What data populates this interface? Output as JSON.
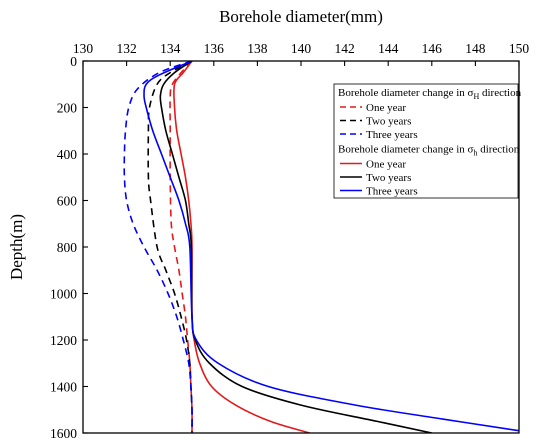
{
  "chart_data": {
    "type": "line",
    "xlabel": "Borehole diameter(mm)",
    "ylabel": "Depth(m)",
    "xlim": [
      130,
      150
    ],
    "ylim": [
      0,
      1600
    ],
    "x_axis_position": "top",
    "y_axis_inverted": true,
    "xticks": [
      "130",
      "132",
      "134",
      "136",
      "138",
      "140",
      "142",
      "144",
      "146",
      "148",
      "150"
    ],
    "yticks": [
      "0",
      "200",
      "400",
      "600",
      "800",
      "1000",
      "1200",
      "1400",
      "1600"
    ],
    "grid": false,
    "legend_placement": "top-right",
    "legend_groups": [
      {
        "prefix": "Borehole diameter change in ",
        "sigma": "σ",
        "subscript": "H",
        "suffix": " direction"
      },
      {
        "prefix": "Borehole diameter change in ",
        "sigma": "σ",
        "subscript": "h",
        "suffix": " direction"
      }
    ],
    "series": [
      {
        "name": "One year",
        "group": 0,
        "color": "#e31a1c",
        "dash": "dashed",
        "points": [
          [
            135.0,
            0
          ],
          [
            134.5,
            50
          ],
          [
            134.1,
            100
          ],
          [
            134.0,
            150
          ],
          [
            134.0,
            300
          ],
          [
            134.0,
            500
          ],
          [
            134.05,
            700
          ],
          [
            134.2,
            800
          ],
          [
            134.4,
            900
          ],
          [
            134.55,
            1000
          ],
          [
            134.7,
            1100
          ],
          [
            134.8,
            1200
          ],
          [
            134.9,
            1300
          ],
          [
            134.95,
            1400
          ],
          [
            135.0,
            1500
          ],
          [
            135.0,
            1600
          ]
        ]
      },
      {
        "name": "Two years",
        "group": 0,
        "color": "#000000",
        "dash": "dashed",
        "points": [
          [
            135.0,
            0
          ],
          [
            134.0,
            50
          ],
          [
            133.4,
            100
          ],
          [
            133.05,
            200
          ],
          [
            133.0,
            300
          ],
          [
            133.0,
            500
          ],
          [
            133.1,
            600
          ],
          [
            133.4,
            800
          ],
          [
            133.8,
            900
          ],
          [
            134.2,
            1000
          ],
          [
            134.5,
            1100
          ],
          [
            134.75,
            1200
          ],
          [
            134.9,
            1300
          ],
          [
            134.95,
            1400
          ],
          [
            135.0,
            1500
          ],
          [
            135.0,
            1600
          ]
        ]
      },
      {
        "name": "Three years",
        "group": 0,
        "color": "#0000ff",
        "dash": "dashed",
        "points": [
          [
            135.0,
            0
          ],
          [
            133.5,
            50
          ],
          [
            132.5,
            120
          ],
          [
            132.1,
            200
          ],
          [
            131.95,
            300
          ],
          [
            131.9,
            400
          ],
          [
            131.9,
            500
          ],
          [
            132.0,
            600
          ],
          [
            132.3,
            700
          ],
          [
            132.8,
            800
          ],
          [
            133.4,
            900
          ],
          [
            133.9,
            1000
          ],
          [
            134.3,
            1100
          ],
          [
            134.6,
            1200
          ],
          [
            134.85,
            1300
          ],
          [
            134.95,
            1400
          ],
          [
            135.0,
            1500
          ],
          [
            135.0,
            1600
          ]
        ]
      },
      {
        "name": "One year",
        "group": 1,
        "color": "#e31a1c",
        "dash": "solid",
        "points": [
          [
            135.0,
            0
          ],
          [
            134.6,
            50
          ],
          [
            134.2,
            100
          ],
          [
            134.2,
            200
          ],
          [
            134.3,
            300
          ],
          [
            134.5,
            400
          ],
          [
            134.7,
            500
          ],
          [
            134.85,
            600
          ],
          [
            134.95,
            700
          ],
          [
            135.0,
            800
          ],
          [
            135.0,
            1100
          ],
          [
            135.1,
            1200
          ],
          [
            135.35,
            1300
          ],
          [
            135.9,
            1400
          ],
          [
            137.0,
            1480
          ],
          [
            138.6,
            1550
          ],
          [
            140.4,
            1600
          ]
        ]
      },
      {
        "name": "Two years",
        "group": 1,
        "color": "#000000",
        "dash": "solid",
        "points": [
          [
            135.0,
            0
          ],
          [
            134.2,
            50
          ],
          [
            133.7,
            100
          ],
          [
            133.55,
            150
          ],
          [
            133.6,
            200
          ],
          [
            133.8,
            300
          ],
          [
            134.1,
            400
          ],
          [
            134.4,
            500
          ],
          [
            134.7,
            600
          ],
          [
            134.85,
            700
          ],
          [
            134.97,
            800
          ],
          [
            135.0,
            1100
          ],
          [
            135.15,
            1200
          ],
          [
            135.8,
            1300
          ],
          [
            137.3,
            1400
          ],
          [
            140.0,
            1480
          ],
          [
            143.5,
            1550
          ],
          [
            146.0,
            1600
          ]
        ]
      },
      {
        "name": "Three years",
        "group": 1,
        "color": "#0000ff",
        "dash": "solid",
        "points": [
          [
            135.0,
            0
          ],
          [
            133.5,
            60
          ],
          [
            132.9,
            100
          ],
          [
            132.8,
            150
          ],
          [
            132.9,
            200
          ],
          [
            133.2,
            300
          ],
          [
            133.6,
            400
          ],
          [
            134.0,
            500
          ],
          [
            134.4,
            600
          ],
          [
            134.7,
            700
          ],
          [
            134.9,
            800
          ],
          [
            135.0,
            1100
          ],
          [
            135.2,
            1200
          ],
          [
            136.2,
            1300
          ],
          [
            138.5,
            1400
          ],
          [
            142.5,
            1480
          ],
          [
            146.5,
            1540
          ],
          [
            150.0,
            1590
          ]
        ]
      }
    ]
  }
}
